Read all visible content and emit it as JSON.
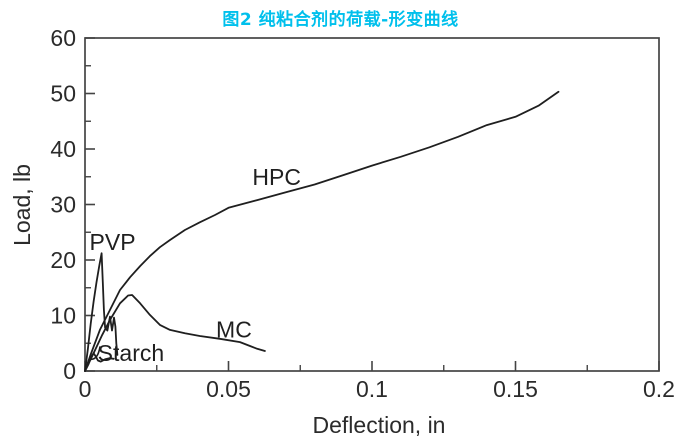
{
  "figure_title": {
    "text": "图2 纯粘合剂的荷载-形变曲线",
    "color": "#00c0ec"
  },
  "chart_data": {
    "type": "line",
    "title": "图2 纯粘合剂的荷载-形变曲线",
    "xlabel": "Deflection, in",
    "ylabel": "Load, lb",
    "xlim": [
      0,
      0.2
    ],
    "ylim": [
      0,
      60
    ],
    "grid": false,
    "legend_position": "none-inline-labels",
    "line_color": "#1f1f1f",
    "axis_color": "#444444",
    "text_color": "#2b2b2b",
    "x_ticks": {
      "major": [
        0,
        0.05,
        0.1,
        0.15,
        0.2
      ],
      "major_labels": [
        "0",
        "0.05",
        "0.1",
        "0.15",
        "0.2"
      ],
      "minor": [
        0.025,
        0.075,
        0.125,
        0.175
      ]
    },
    "y_ticks": {
      "major": [
        0,
        10,
        20,
        30,
        40,
        50,
        60
      ],
      "major_labels": [
        "0",
        "10",
        "20",
        "30",
        "40",
        "50",
        "60"
      ],
      "minor": [
        5,
        15,
        25,
        35,
        45,
        55
      ]
    },
    "series": [
      {
        "name": "HPC",
        "x": [
          0,
          0.002,
          0.0052,
          0.0087,
          0.0122,
          0.0157,
          0.0192,
          0.0226,
          0.0261,
          0.0296,
          0.0348,
          0.04,
          0.0453,
          0.05,
          0.06,
          0.07,
          0.08,
          0.09,
          0.1,
          0.11,
          0.12,
          0.13,
          0.14,
          0.15,
          0.158,
          0.165
        ],
        "y": [
          0,
          3,
          7.4,
          11,
          14.6,
          16.9,
          18.9,
          20.7,
          22.3,
          23.6,
          25.4,
          26.8,
          28.1,
          29.4,
          30.8,
          32.2,
          33.6,
          35.3,
          37,
          38.6,
          40.3,
          42.2,
          44.3,
          45.8,
          47.8,
          50.3
        ]
      },
      {
        "name": "PVP",
        "x": [
          0,
          0.001,
          0.002,
          0.003,
          0.004,
          0.005,
          0.0058,
          0.0062,
          0.0066,
          0.007,
          0.0078,
          0.0087,
          0.0094,
          0.0101,
          0.0106,
          0.0109,
          0.0113
        ],
        "y": [
          0,
          4,
          8.5,
          12.5,
          16,
          19,
          21.2,
          16,
          11,
          7.8,
          7.3,
          9.8,
          7.3,
          9.6,
          8,
          5,
          2.9
        ]
      },
      {
        "name": "MC",
        "x": [
          0,
          0.003,
          0.006,
          0.0087,
          0.0122,
          0.015,
          0.0164,
          0.0192,
          0.0226,
          0.0261,
          0.0296,
          0.0348,
          0.04,
          0.047,
          0.054,
          0.0575,
          0.06,
          0.0627
        ],
        "y": [
          0,
          3.2,
          6.5,
          9.2,
          12.2,
          13.6,
          13.7,
          12.2,
          10.1,
          8.3,
          7.4,
          6.8,
          6.3,
          5.8,
          5.2,
          4.5,
          4,
          3.6
        ]
      },
      {
        "name": "Starch",
        "x": [
          0,
          0.0012,
          0.0022,
          0.003,
          0.0038,
          0.0045,
          0.0055,
          0.007,
          0.0085,
          0.01
        ],
        "y": [
          0,
          1.2,
          2.6,
          3.2,
          2.6,
          1.9,
          1.7,
          2.1,
          2.3,
          2.2
        ]
      }
    ],
    "annotations": [
      {
        "text": "HPC",
        "x": 0.0668,
        "y": 35.0
      },
      {
        "text": "PVP",
        "x": 0.0096,
        "y": 23.2
      },
      {
        "text": "MC",
        "x": 0.0519,
        "y": 7.5
      },
      {
        "text": "Starch",
        "x": 0.016,
        "y": 3.2
      }
    ],
    "starch_leader": {
      "path_points": [
        [
          0.0052,
          4.3
        ],
        [
          0.0045,
          2.1
        ],
        [
          0.0021,
          2.1
        ]
      ]
    }
  }
}
